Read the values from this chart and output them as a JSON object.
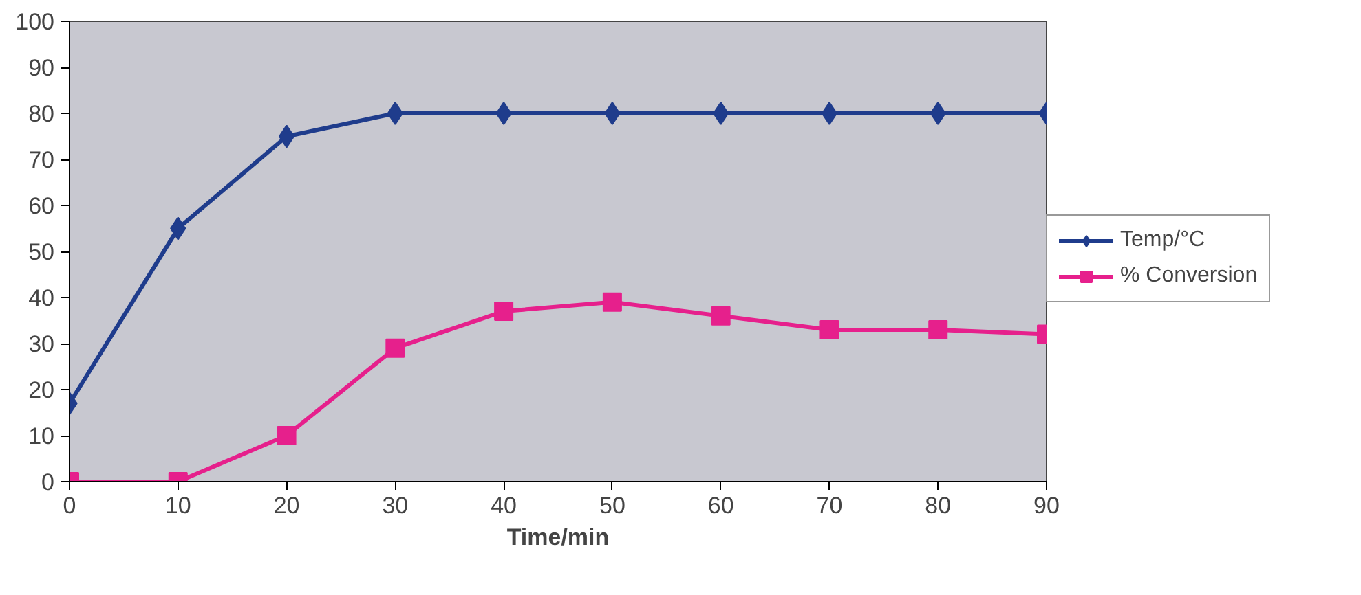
{
  "chart_data": {
    "type": "line",
    "xlabel": "Time/min",
    "x": [
      0,
      10,
      20,
      30,
      40,
      50,
      60,
      70,
      80,
      90
    ],
    "series": [
      {
        "name": "Temp/°C",
        "color": "#1f3c8c",
        "marker": "diamond",
        "values": [
          17,
          55,
          75,
          80,
          80,
          80,
          80,
          80,
          80,
          80
        ]
      },
      {
        "name": "% Conversion",
        "color": "#e6208c",
        "marker": "square",
        "values": [
          0,
          0,
          10,
          29,
          37,
          39,
          36,
          33,
          33,
          32
        ]
      }
    ],
    "xlim": [
      0,
      90
    ],
    "xticks": [
      0,
      10,
      20,
      30,
      40,
      50,
      60,
      70,
      80,
      90
    ],
    "ylim": [
      0,
      100
    ],
    "yticks": [
      0,
      10,
      20,
      30,
      40,
      50,
      60,
      70,
      80,
      90,
      100
    ],
    "grid": false,
    "legend": "right"
  }
}
